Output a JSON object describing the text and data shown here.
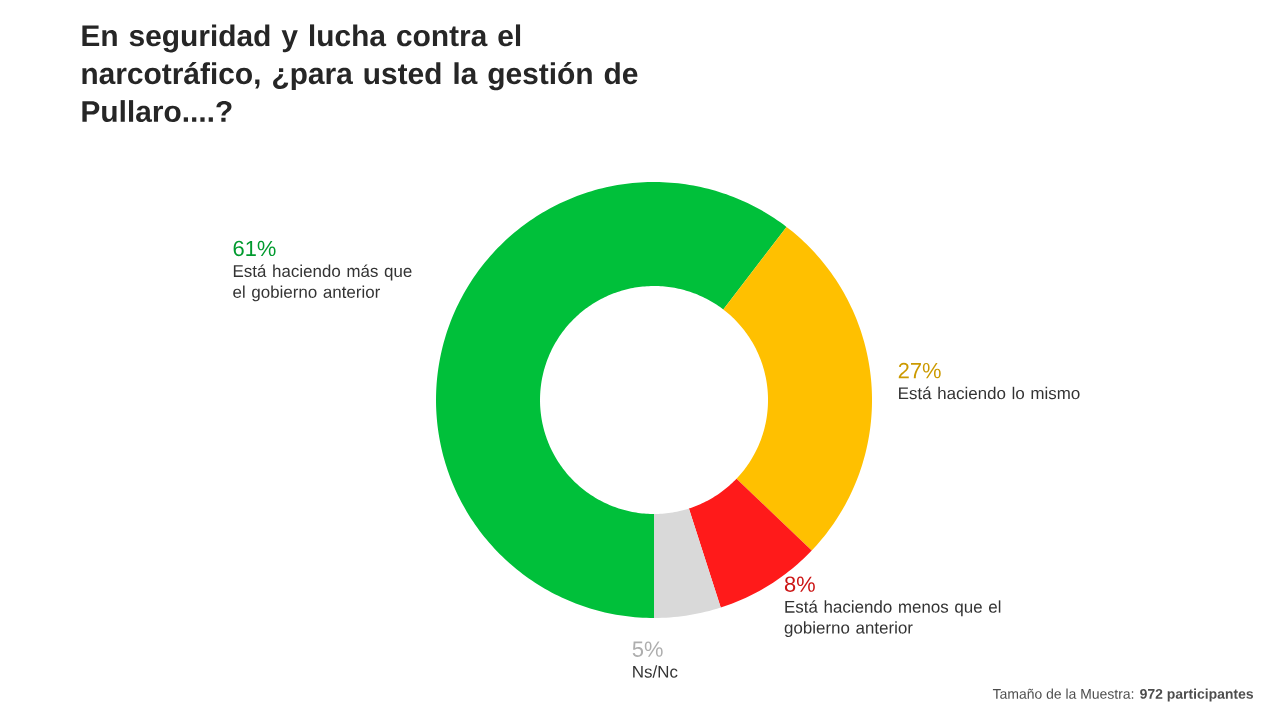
{
  "chart_data": {
    "type": "donut",
    "title": "En seguridad y lucha contra el narcotráfico, ¿para usted la gestión de Pullaro....?",
    "categories": [
      "Está haciendo más que el gobierno anterior",
      "Está haciendo lo mismo",
      "Está haciendo menos que el gobierno anterior",
      "Ns/Nc"
    ],
    "values": [
      61,
      27,
      8,
      5
    ],
    "value_labels": [
      "61%",
      "27%",
      "8%",
      "5%"
    ],
    "colors": [
      "#00c03a",
      "#ffc000",
      "#ff1a1a",
      "#d9d9d9"
    ],
    "annotations": [
      "Tamaño de la Muestra: **972 participantes**"
    ],
    "legend": false
  }
}
